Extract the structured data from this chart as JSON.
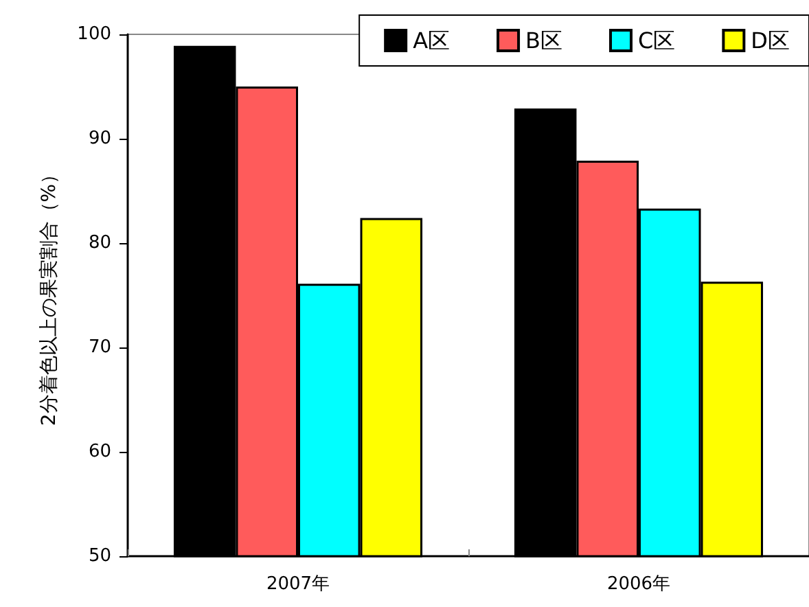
{
  "chart_data": {
    "type": "bar",
    "ylabel": "2分着色以上の果実割合（%）",
    "categories": [
      "2007年",
      "2006年"
    ],
    "series": [
      {
        "name": "A区",
        "color": "#000000",
        "values": [
          98.9,
          92.9
        ]
      },
      {
        "name": "B区",
        "color": "#ff5b5b",
        "values": [
          95.0,
          87.9
        ]
      },
      {
        "name": "C区",
        "color": "#00ffff",
        "values": [
          76.1,
          83.3
        ]
      },
      {
        "name": "D区",
        "color": "#ffff00",
        "values": [
          82.4,
          76.3
        ]
      }
    ],
    "ylim": [
      50,
      100
    ],
    "yticks": [
      50,
      60,
      70,
      80,
      90,
      100
    ],
    "grid": false,
    "legend": "top right"
  }
}
